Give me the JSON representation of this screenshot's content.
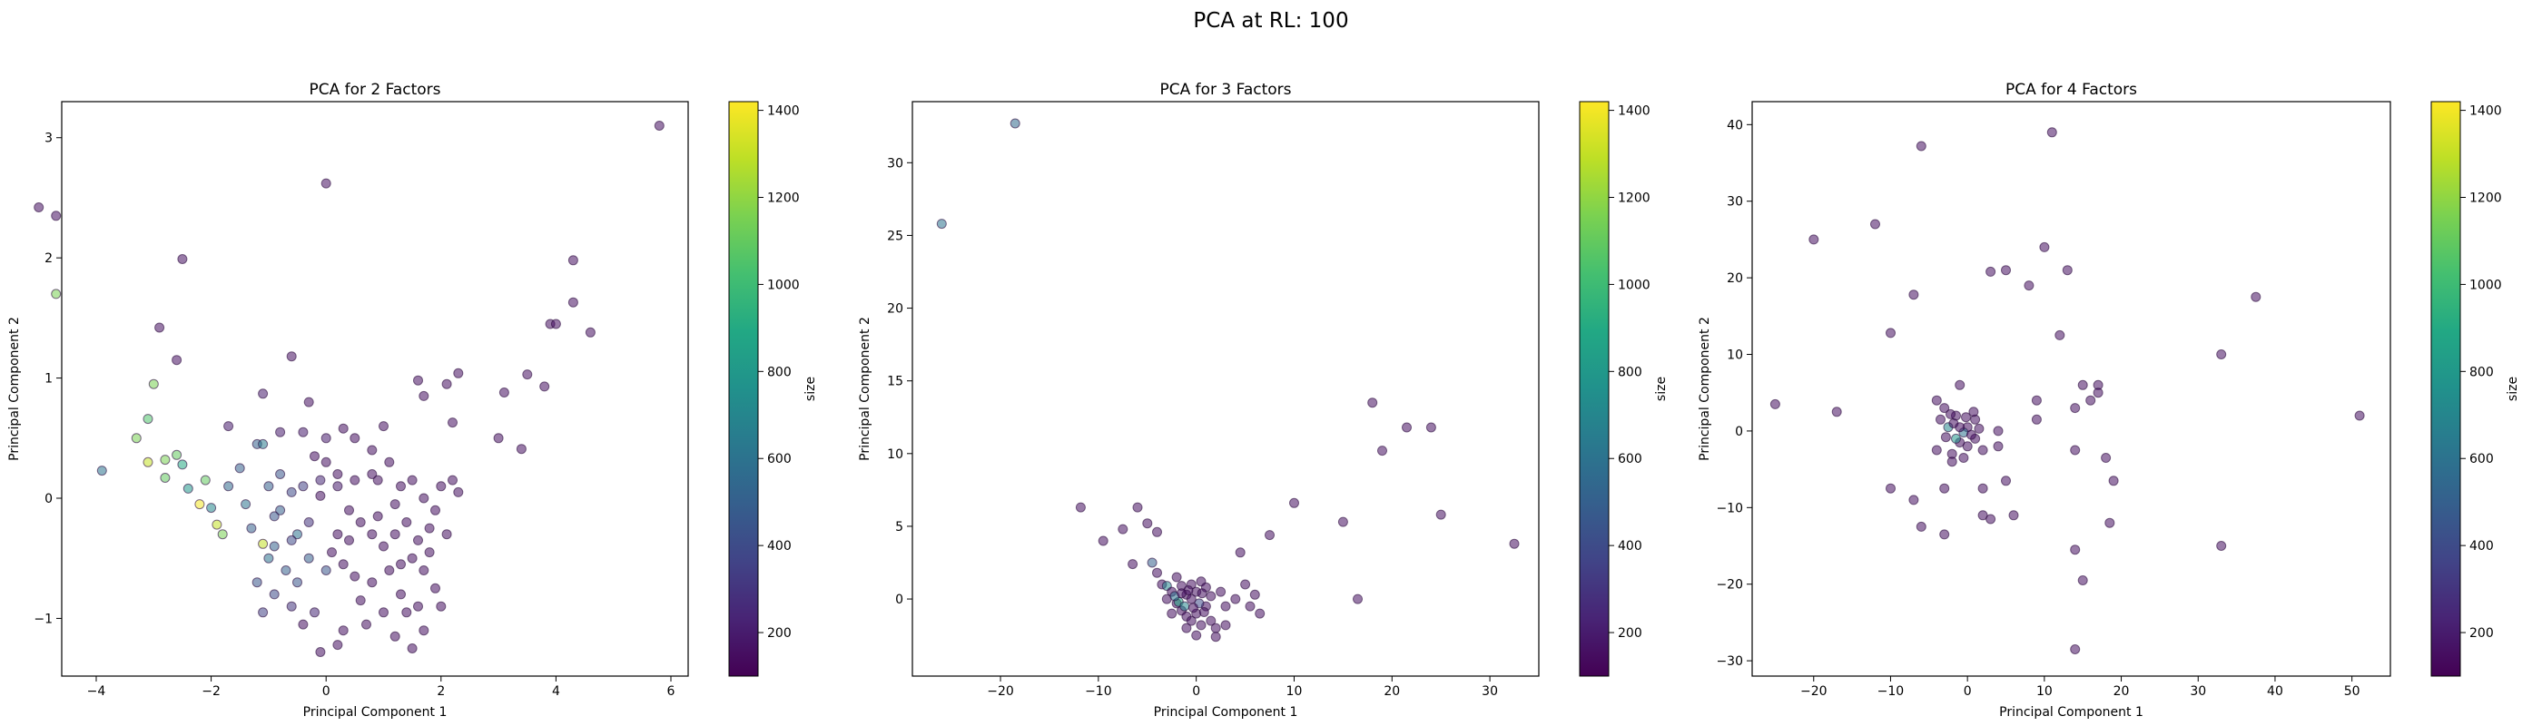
{
  "figure": {
    "suptitle": "PCA at RL: 100"
  },
  "colorbar": {
    "label": "size",
    "min": 100,
    "max": 1420,
    "ticks": [
      200,
      400,
      600,
      800,
      1000,
      1200,
      1400
    ],
    "colormap": "viridis",
    "colormap_stops": [
      "#440154",
      "#482475",
      "#414487",
      "#355f8d",
      "#2a788e",
      "#21918c",
      "#22a884",
      "#44bf70",
      "#7ad151",
      "#bddf26",
      "#fde725"
    ]
  },
  "chart_data": [
    {
      "type": "scatter",
      "title": "PCA for 2 Factors",
      "xlabel": "Principal Component 1",
      "ylabel": "Principal Component 2",
      "xlim": [
        -4.6,
        6.3
      ],
      "ylim": [
        -1.48,
        3.3
      ],
      "xticks": [
        -4,
        -2,
        0,
        2,
        4,
        6
      ],
      "yticks": [
        -1,
        0,
        1,
        2,
        3
      ],
      "grid": false,
      "points": [
        [
          -5.0,
          2.42,
          150
        ],
        [
          -4.7,
          2.35,
          150
        ],
        [
          -4.7,
          1.7,
          1150
        ],
        [
          -2.5,
          1.99,
          150
        ],
        [
          -2.9,
          1.42,
          150
        ],
        [
          -2.6,
          1.15,
          150
        ],
        [
          -3.0,
          0.95,
          1150
        ],
        [
          -3.1,
          0.66,
          1050
        ],
        [
          -3.3,
          0.5,
          1150
        ],
        [
          -3.9,
          0.23,
          600
        ],
        [
          -3.1,
          0.3,
          1300
        ],
        [
          -2.8,
          0.32,
          1150
        ],
        [
          -2.6,
          0.36,
          1100
        ],
        [
          -2.5,
          0.28,
          900
        ],
        [
          -2.8,
          0.17,
          1100
        ],
        [
          -2.4,
          0.08,
          800
        ],
        [
          -2.1,
          0.15,
          1100
        ],
        [
          -2.2,
          -0.05,
          1400
        ],
        [
          -2.0,
          -0.08,
          700
        ],
        [
          -1.9,
          -0.22,
          1300
        ],
        [
          -1.8,
          -0.3,
          1150
        ],
        [
          -1.7,
          0.1,
          550
        ],
        [
          -1.5,
          0.25,
          500
        ],
        [
          -1.4,
          -0.05,
          600
        ],
        [
          -1.3,
          -0.25,
          500
        ],
        [
          -1.2,
          0.45,
          500
        ],
        [
          -1.1,
          0.45,
          650
        ],
        [
          -1.1,
          -0.38,
          1300
        ],
        [
          -1.0,
          0.1,
          500
        ],
        [
          -1.0,
          -0.5,
          600
        ],
        [
          -0.9,
          -0.4,
          500
        ],
        [
          -0.8,
          0.2,
          450
        ],
        [
          -0.8,
          -0.1,
          500
        ],
        [
          -0.7,
          -0.6,
          500
        ],
        [
          -0.6,
          0.05,
          400
        ],
        [
          -0.5,
          -0.3,
          600
        ],
        [
          -0.5,
          -0.7,
          450
        ],
        [
          -0.4,
          0.1,
          350
        ],
        [
          -0.3,
          -0.5,
          500
        ],
        [
          -1.2,
          -0.7,
          450
        ],
        [
          -1.1,
          -0.95,
          350
        ],
        [
          -0.9,
          -0.8,
          400
        ],
        [
          -0.6,
          -0.9,
          300
        ],
        [
          -0.2,
          -0.95,
          250
        ],
        [
          0.0,
          -0.6,
          450
        ],
        [
          -1.7,
          0.6,
          200
        ],
        [
          -1.1,
          0.87,
          200
        ],
        [
          -0.6,
          1.18,
          150
        ],
        [
          -0.3,
          0.8,
          150
        ],
        [
          0.0,
          2.62,
          150
        ],
        [
          -0.1,
          -1.28,
          150
        ],
        [
          0.2,
          -1.22,
          150
        ],
        [
          0.3,
          -1.1,
          150
        ],
        [
          -0.4,
          -1.05,
          150
        ],
        [
          -0.8,
          0.55,
          200
        ],
        [
          -0.4,
          0.55,
          200
        ],
        [
          0.0,
          0.5,
          200
        ],
        [
          0.3,
          0.58,
          150
        ],
        [
          0.5,
          0.5,
          150
        ],
        [
          1.0,
          0.6,
          150
        ],
        [
          0.8,
          0.4,
          150
        ],
        [
          0.0,
          0.3,
          150
        ],
        [
          -0.2,
          0.35,
          150
        ],
        [
          0.2,
          0.2,
          150
        ],
        [
          0.5,
          0.15,
          150
        ],
        [
          0.8,
          0.2,
          150
        ],
        [
          1.1,
          0.3,
          150
        ],
        [
          1.3,
          0.1,
          150
        ],
        [
          1.5,
          0.15,
          150
        ],
        [
          1.7,
          0.0,
          150
        ],
        [
          2.0,
          0.1,
          150
        ],
        [
          2.2,
          0.15,
          150
        ],
        [
          2.3,
          0.05,
          150
        ],
        [
          1.9,
          -0.1,
          150
        ],
        [
          1.8,
          -0.25,
          150
        ],
        [
          1.6,
          -0.35,
          150
        ],
        [
          1.4,
          -0.2,
          150
        ],
        [
          1.2,
          -0.3,
          150
        ],
        [
          1.0,
          -0.4,
          150
        ],
        [
          0.8,
          -0.3,
          150
        ],
        [
          0.6,
          -0.2,
          150
        ],
        [
          0.4,
          -0.1,
          150
        ],
        [
          0.2,
          -0.3,
          150
        ],
        [
          0.1,
          -0.45,
          150
        ],
        [
          0.3,
          -0.55,
          150
        ],
        [
          0.5,
          -0.65,
          150
        ],
        [
          0.8,
          -0.7,
          150
        ],
        [
          1.1,
          -0.6,
          150
        ],
        [
          1.3,
          -0.55,
          150
        ],
        [
          1.5,
          -0.5,
          150
        ],
        [
          1.7,
          -0.6,
          150
        ],
        [
          1.9,
          -0.75,
          150
        ],
        [
          2.0,
          -0.9,
          150
        ],
        [
          1.6,
          -0.9,
          150
        ],
        [
          1.3,
          -0.8,
          150
        ],
        [
          1.0,
          -0.95,
          150
        ],
        [
          0.7,
          -1.05,
          150
        ],
        [
          1.7,
          -1.1,
          150
        ],
        [
          1.5,
          -1.25,
          150
        ],
        [
          1.2,
          -1.15,
          150
        ],
        [
          1.6,
          0.98,
          150
        ],
        [
          1.7,
          0.85,
          150
        ],
        [
          2.1,
          0.95,
          150
        ],
        [
          2.3,
          1.04,
          150
        ],
        [
          2.2,
          0.63,
          150
        ],
        [
          3.1,
          0.88,
          150
        ],
        [
          3.0,
          0.5,
          150
        ],
        [
          3.5,
          1.03,
          150
        ],
        [
          3.4,
          0.41,
          150
        ],
        [
          3.8,
          0.93,
          150
        ],
        [
          3.9,
          1.45,
          150
        ],
        [
          4.0,
          1.45,
          150
        ],
        [
          4.3,
          1.98,
          150
        ],
        [
          4.3,
          1.63,
          150
        ],
        [
          4.6,
          1.38,
          150
        ],
        [
          5.8,
          3.1,
          150
        ],
        [
          -0.1,
          0.02,
          150
        ],
        [
          0.4,
          -0.35,
          150
        ],
        [
          0.9,
          -0.15,
          150
        ],
        [
          1.2,
          -0.05,
          150
        ],
        [
          0.2,
          0.1,
          200
        ],
        [
          -0.3,
          -0.2,
          300
        ],
        [
          -0.6,
          -0.35,
          400
        ],
        [
          -0.9,
          -0.15,
          450
        ],
        [
          0.6,
          -0.85,
          150
        ],
        [
          1.4,
          -0.95,
          150
        ],
        [
          1.8,
          -0.45,
          150
        ],
        [
          2.1,
          -0.3,
          150
        ],
        [
          0.9,
          0.15,
          150
        ],
        [
          -0.1,
          0.15,
          250
        ]
      ]
    },
    {
      "type": "scatter",
      "title": "PCA for 3 Factors",
      "xlabel": "Principal Component 1",
      "ylabel": "Principal Component 2",
      "xlim": [
        -29,
        35
      ],
      "ylim": [
        -5.3,
        34.2
      ],
      "xticks": [
        -20,
        -10,
        0,
        10,
        20,
        30
      ],
      "yticks": [
        0,
        5,
        10,
        15,
        20,
        25,
        30
      ],
      "grid": false,
      "points": [
        [
          -26.0,
          25.8,
          600
        ],
        [
          -18.5,
          32.7,
          550
        ],
        [
          -11.8,
          6.3,
          150
        ],
        [
          -9.5,
          4.0,
          150
        ],
        [
          -7.5,
          4.8,
          150
        ],
        [
          -6.0,
          6.3,
          150
        ],
        [
          -5.0,
          5.2,
          150
        ],
        [
          -4.0,
          4.6,
          150
        ],
        [
          -6.5,
          2.4,
          150
        ],
        [
          -4.5,
          2.5,
          500
        ],
        [
          -4.0,
          1.8,
          150
        ],
        [
          -3.5,
          1.0,
          150
        ],
        [
          -3.0,
          0.9,
          700
        ],
        [
          -2.5,
          0.5,
          150
        ],
        [
          -2.0,
          1.5,
          150
        ],
        [
          -1.5,
          0.9,
          150
        ],
        [
          -1.0,
          0.3,
          150
        ],
        [
          -0.5,
          1.0,
          150
        ],
        [
          0.0,
          0.5,
          150
        ],
        [
          0.5,
          1.2,
          150
        ],
        [
          1.0,
          0.8,
          150
        ],
        [
          1.5,
          0.2,
          150
        ],
        [
          -3.0,
          0.0,
          150
        ],
        [
          -2.0,
          -0.3,
          150
        ],
        [
          -1.5,
          -0.8,
          150
        ],
        [
          -1.0,
          -1.2,
          150
        ],
        [
          -0.5,
          -1.5,
          150
        ],
        [
          0.0,
          -1.0,
          150
        ],
        [
          0.5,
          -1.8,
          150
        ],
        [
          1.0,
          -0.5,
          150
        ],
        [
          -1.0,
          -2.0,
          150
        ],
        [
          0.0,
          -2.5,
          150
        ],
        [
          1.5,
          -1.5,
          150
        ],
        [
          2.0,
          -2.0,
          150
        ],
        [
          -0.5,
          0.0,
          150
        ],
        [
          -1.8,
          -0.2,
          900
        ],
        [
          -1.2,
          -0.5,
          700
        ],
        [
          -2.2,
          0.2,
          600
        ],
        [
          0.3,
          -0.3,
          400
        ],
        [
          2.5,
          0.5,
          150
        ],
        [
          3.0,
          -0.5,
          150
        ],
        [
          4.0,
          0.0,
          150
        ],
        [
          5.0,
          1.0,
          150
        ],
        [
          6.0,
          0.3,
          150
        ],
        [
          4.5,
          3.2,
          150
        ],
        [
          5.5,
          -0.5,
          150
        ],
        [
          6.5,
          -1.0,
          150
        ],
        [
          2.0,
          -2.6,
          150
        ],
        [
          3.0,
          -1.8,
          150
        ],
        [
          7.5,
          4.4,
          150
        ],
        [
          10.0,
          6.6,
          150
        ],
        [
          15.0,
          5.3,
          150
        ],
        [
          16.5,
          0.0,
          150
        ],
        [
          18.0,
          13.5,
          150
        ],
        [
          19.0,
          10.2,
          150
        ],
        [
          21.5,
          11.8,
          150
        ],
        [
          24.0,
          11.8,
          150
        ],
        [
          25.0,
          5.8,
          150
        ],
        [
          32.5,
          3.8,
          150
        ],
        [
          -0.8,
          0.6,
          150
        ],
        [
          0.8,
          -0.9,
          150
        ],
        [
          -0.3,
          -0.6,
          150
        ],
        [
          0.6,
          0.4,
          150
        ],
        [
          -2.5,
          -1.0,
          150
        ],
        [
          -1.5,
          0.4,
          150
        ]
      ]
    },
    {
      "type": "scatter",
      "title": "PCA for 4 Factors",
      "xlabel": "Principal Component 1",
      "ylabel": "Principal Component 2",
      "xlim": [
        -28,
        55
      ],
      "ylim": [
        -32,
        43
      ],
      "xticks": [
        -20,
        -10,
        0,
        10,
        20,
        30,
        40,
        50
      ],
      "yticks": [
        -30,
        -20,
        -10,
        0,
        10,
        20,
        30,
        40
      ],
      "grid": false,
      "points": [
        [
          -25.0,
          3.5,
          150
        ],
        [
          -20.0,
          25.0,
          150
        ],
        [
          -17.0,
          2.5,
          150
        ],
        [
          -12.0,
          27.0,
          150
        ],
        [
          -10.0,
          12.8,
          150
        ],
        [
          -10.0,
          -7.5,
          150
        ],
        [
          -7.0,
          17.8,
          150
        ],
        [
          -6.0,
          37.2,
          150
        ],
        [
          -6.0,
          -12.5,
          150
        ],
        [
          -7.0,
          -9.0,
          150
        ],
        [
          -4.0,
          4.0,
          150
        ],
        [
          -4.0,
          -2.5,
          150
        ],
        [
          -3.0,
          -13.5,
          150
        ],
        [
          -3.0,
          -7.5,
          150
        ],
        [
          -2.0,
          -3.0,
          150
        ],
        [
          -1.5,
          2.0,
          150
        ],
        [
          -1.0,
          6.0,
          150
        ],
        [
          -1.0,
          -1.5,
          150
        ],
        [
          0.0,
          0.5,
          150
        ],
        [
          0.0,
          -2.0,
          150
        ],
        [
          1.0,
          -1.0,
          150
        ],
        [
          1.0,
          1.5,
          150
        ],
        [
          2.0,
          -2.5,
          150
        ],
        [
          2.0,
          -7.5,
          150
        ],
        [
          2.0,
          -11.0,
          150
        ],
        [
          3.0,
          -11.5,
          150
        ],
        [
          3.0,
          20.8,
          150
        ],
        [
          4.0,
          0.0,
          150
        ],
        [
          4.0,
          -2.0,
          150
        ],
        [
          5.0,
          -6.5,
          150
        ],
        [
          5.0,
          21.0,
          150
        ],
        [
          6.0,
          -11.0,
          150
        ],
        [
          -2.5,
          0.5,
          700
        ],
        [
          -1.5,
          -1.0,
          800
        ],
        [
          -0.5,
          -0.2,
          600
        ],
        [
          -3.5,
          1.5,
          150
        ],
        [
          -2.8,
          -0.8,
          150
        ],
        [
          -1.8,
          1.0,
          150
        ],
        [
          -1.0,
          0.5,
          150
        ],
        [
          -0.2,
          1.8,
          150
        ],
        [
          0.5,
          -0.5,
          150
        ],
        [
          1.5,
          0.3,
          150
        ],
        [
          -3.0,
          3.0,
          150
        ],
        [
          -2.0,
          -4.0,
          150
        ],
        [
          -0.5,
          -3.5,
          150
        ],
        [
          8.0,
          19.0,
          150
        ],
        [
          9.0,
          1.5,
          150
        ],
        [
          9.0,
          4.0,
          150
        ],
        [
          10.0,
          24.0,
          150
        ],
        [
          11.0,
          39.0,
          150
        ],
        [
          12.0,
          12.5,
          150
        ],
        [
          13.0,
          21.0,
          150
        ],
        [
          14.0,
          -2.5,
          150
        ],
        [
          14.0,
          3.0,
          150
        ],
        [
          14.0,
          -15.5,
          150
        ],
        [
          14.0,
          -28.5,
          150
        ],
        [
          15.0,
          6.0,
          150
        ],
        [
          15.0,
          -19.5,
          150
        ],
        [
          16.0,
          4.0,
          150
        ],
        [
          17.0,
          6.0,
          150
        ],
        [
          17.0,
          5.0,
          150
        ],
        [
          18.0,
          -3.5,
          150
        ],
        [
          19.0,
          -6.5,
          150
        ],
        [
          18.5,
          -12.0,
          150
        ],
        [
          33.0,
          10.0,
          150
        ],
        [
          33.0,
          -15.0,
          150
        ],
        [
          37.5,
          17.5,
          150
        ],
        [
          51.0,
          2.0,
          150
        ],
        [
          -2.2,
          2.2,
          150
        ],
        [
          0.8,
          2.5,
          150
        ]
      ]
    }
  ]
}
